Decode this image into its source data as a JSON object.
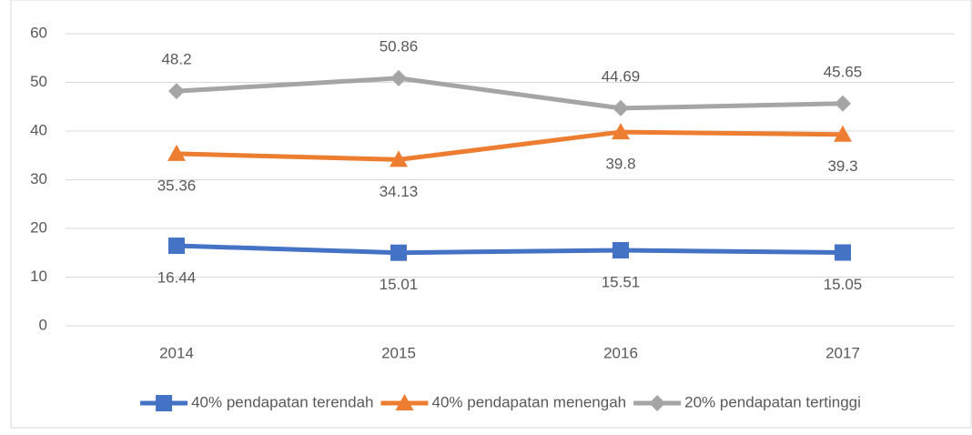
{
  "chart_data": {
    "type": "line",
    "categories": [
      "2014",
      "2015",
      "2016",
      "2017"
    ],
    "series": [
      {
        "name": "40% pendapatan terendah",
        "color": "#4472c4",
        "marker": "square",
        "label_position": "below",
        "values": [
          16.44,
          15.01,
          15.51,
          15.05
        ]
      },
      {
        "name": "40% pendapatan menengah",
        "color": "#ed7d31",
        "marker": "triangle",
        "label_position": "below",
        "values": [
          35.36,
          34.13,
          39.8,
          39.3
        ]
      },
      {
        "name": "20% pendapatan tertinggi",
        "color": "#a5a5a5",
        "marker": "diamond",
        "label_position": "above",
        "values": [
          48.2,
          50.86,
          44.69,
          45.65
        ]
      }
    ],
    "ylim": [
      0,
      60
    ],
    "yticks": [
      0,
      10,
      20,
      30,
      40,
      50,
      60
    ],
    "grid": true,
    "legend": "bottom"
  }
}
